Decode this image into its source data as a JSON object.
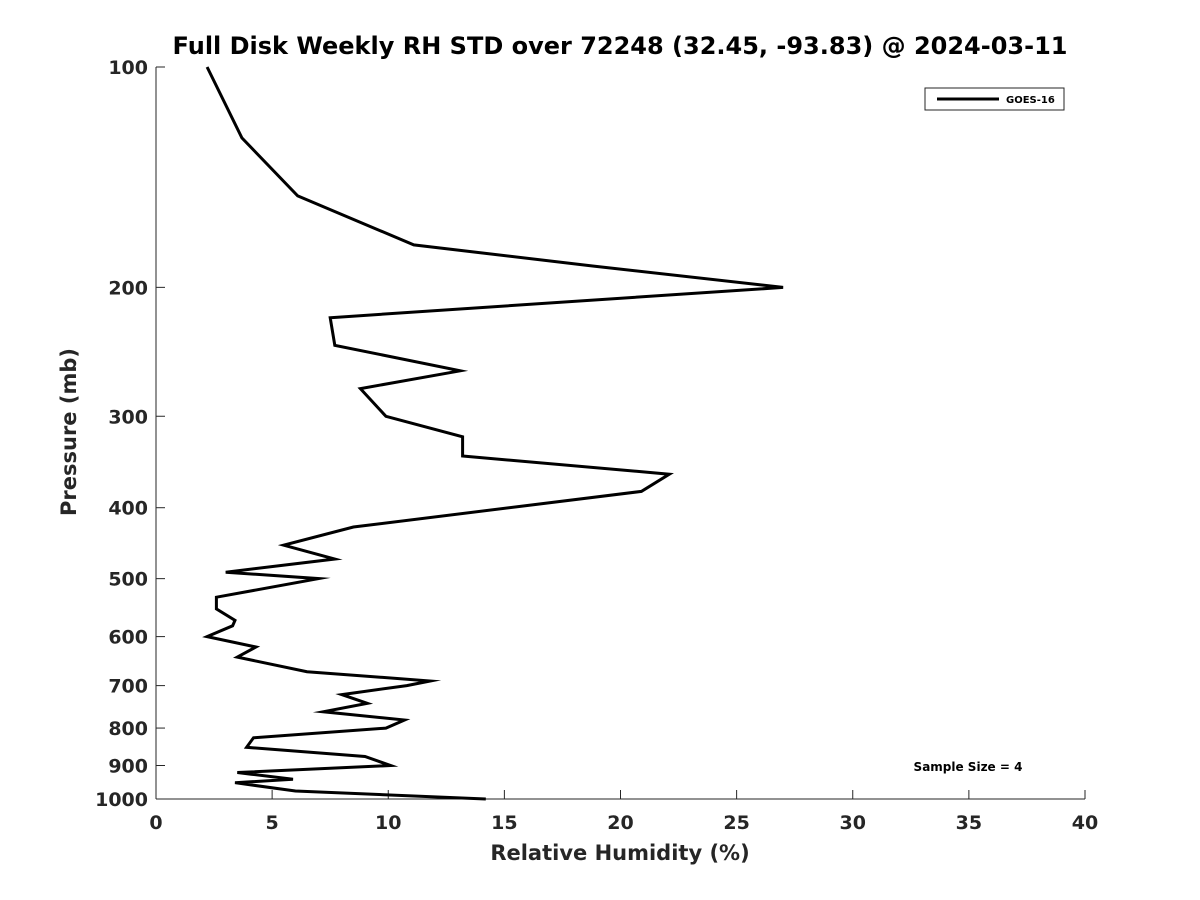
{
  "chart_data": {
    "type": "line",
    "title": "Full Disk Weekly RH STD over 72248 (32.45, -93.83) @ 2024-03-11",
    "xlabel": "Relative Humidity (%)",
    "ylabel": "Pressure (mb)",
    "xlim": [
      0,
      40
    ],
    "ylim": [
      1000,
      100
    ],
    "yscale": "log",
    "x_ticks": [
      0,
      5,
      10,
      15,
      20,
      25,
      30,
      35,
      40
    ],
    "y_ticks": [
      100,
      200,
      300,
      400,
      500,
      600,
      700,
      800,
      900,
      1000
    ],
    "grid": false,
    "legend_position": "top-right",
    "series": [
      {
        "name": "GOES-16",
        "color": "#000000",
        "points": [
          [
            2.2,
            100
          ],
          [
            3.7,
            125
          ],
          [
            6.1,
            150
          ],
          [
            11.1,
            175
          ],
          [
            18.8,
            187
          ],
          [
            27.0,
            200
          ],
          [
            7.5,
            220
          ],
          [
            7.7,
            240
          ],
          [
            13.1,
            260
          ],
          [
            8.8,
            275
          ],
          [
            9.9,
            300
          ],
          [
            13.2,
            320
          ],
          [
            13.2,
            340
          ],
          [
            22.1,
            360
          ],
          [
            20.9,
            380
          ],
          [
            8.5,
            425
          ],
          [
            5.5,
            450
          ],
          [
            7.7,
            470
          ],
          [
            3.0,
            490
          ],
          [
            7.0,
            500
          ],
          [
            2.6,
            530
          ],
          [
            2.6,
            550
          ],
          [
            3.4,
            570
          ],
          [
            3.3,
            580
          ],
          [
            2.2,
            600
          ],
          [
            4.3,
            620
          ],
          [
            3.5,
            640
          ],
          [
            6.5,
            670
          ],
          [
            11.8,
            690
          ],
          [
            10.8,
            700
          ],
          [
            8.0,
            720
          ],
          [
            9.1,
            740
          ],
          [
            7.2,
            760
          ],
          [
            10.7,
            780
          ],
          [
            9.9,
            800
          ],
          [
            4.2,
            825
          ],
          [
            3.9,
            850
          ],
          [
            9.0,
            875
          ],
          [
            10.1,
            900
          ],
          [
            3.5,
            920
          ],
          [
            4.1,
            925
          ],
          [
            5.9,
            940
          ],
          [
            3.4,
            950
          ],
          [
            6.0,
            975
          ],
          [
            14.2,
            1000
          ]
        ]
      }
    ],
    "legend": [
      "GOES-16"
    ],
    "annotation": "Sample Size = 4"
  }
}
